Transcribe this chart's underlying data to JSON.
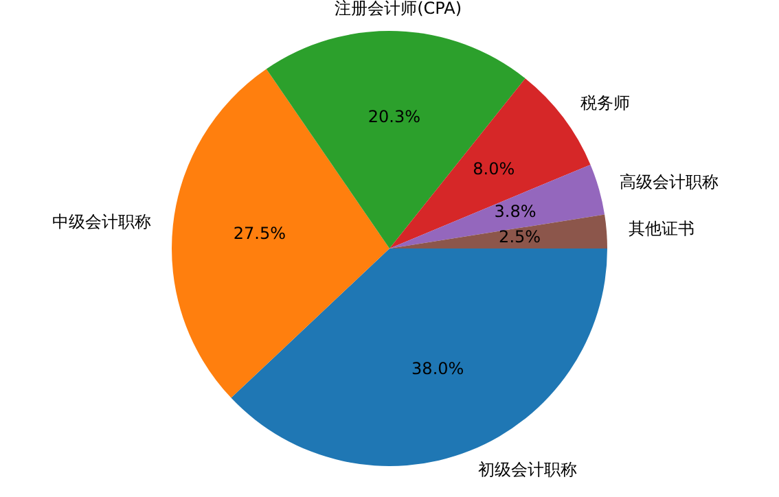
{
  "chart_data": {
    "type": "pie",
    "categories": [
      "初级会计职称",
      "中级会计职称",
      "注册会计师(CPA)",
      "税务师",
      "高级会计职称",
      "其他证书"
    ],
    "values": [
      38.0,
      27.5,
      20.3,
      8.0,
      3.8,
      2.5
    ],
    "colors": [
      "#1f77b4",
      "#ff7f0e",
      "#2ca02c",
      "#d62728",
      "#9467bd",
      "#8c564b"
    ],
    "value_labels": [
      "38.0%",
      "27.5%",
      "20.3%",
      "8.0%",
      "3.8%",
      "2.5%"
    ],
    "legend": false
  }
}
